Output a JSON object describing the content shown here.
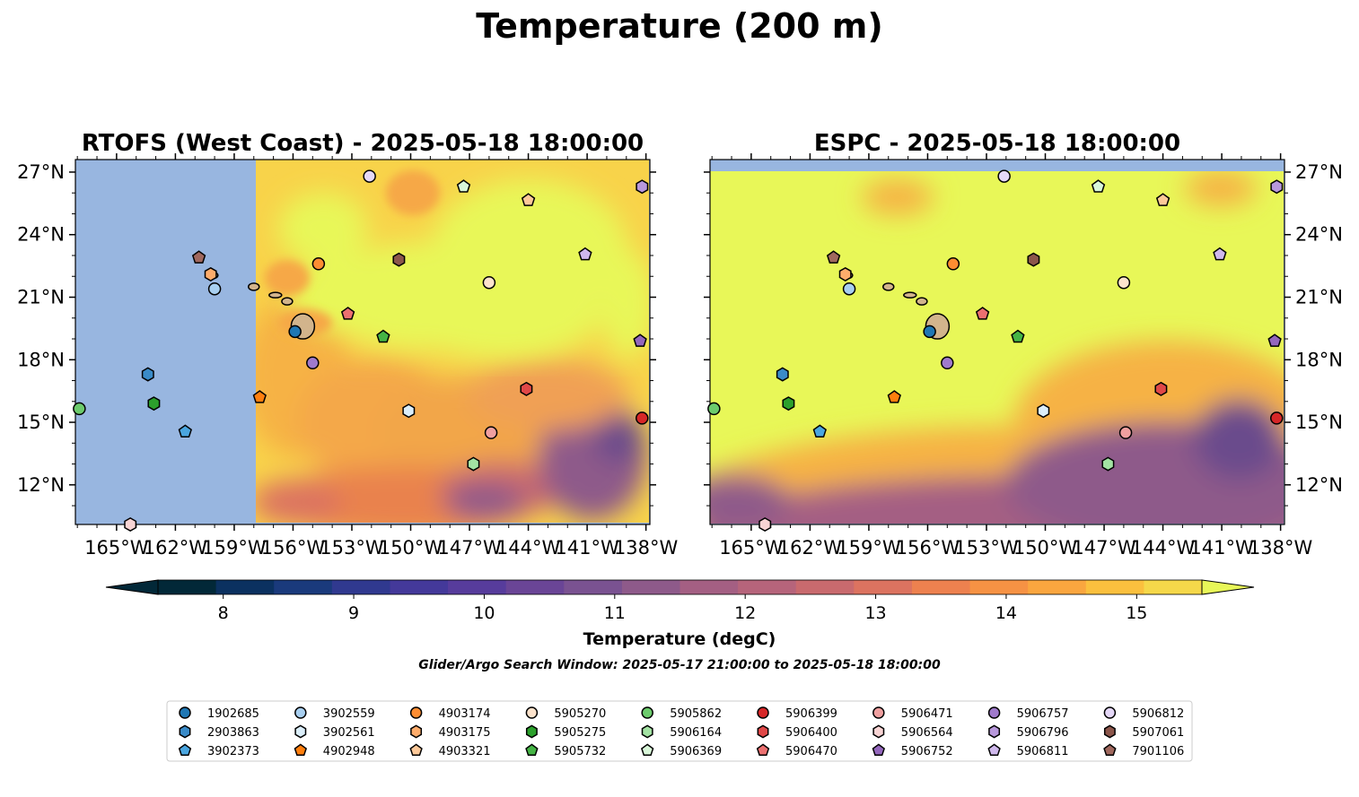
{
  "figure": {
    "title": "Temperature (200 m)",
    "colorbar_label": "Temperature (degC)",
    "search_window": "Glider/Argo Search Window: 2025-05-17 21:00:00 to 2025-05-18 18:00:00",
    "colors": {
      "ocean_nodata": "#98b6e0",
      "land": "#d2b48c",
      "warm": "#e8f758",
      "mid": "#f6b244",
      "cool": "#6a4c8c"
    }
  },
  "chart_data": [
    {
      "type": "heatmap",
      "title": "RTOFS (West Coast) - 2025-05-18 18:00:00",
      "xlim": [
        -167.1,
        -137.8
      ],
      "ylim": [
        10.1,
        27.6
      ],
      "xticks": [
        -165,
        -162,
        -159,
        -156,
        -153,
        -150,
        -147,
        -144,
        -141,
        -138
      ],
      "xtick_labels": [
        "165°W",
        "162°W",
        "159°W",
        "156°W",
        "153°W",
        "150°W",
        "147°W",
        "144°W",
        "141°W",
        "138°W"
      ],
      "yticks": [
        12,
        15,
        18,
        21,
        24,
        27
      ],
      "ytick_labels": [
        "12°N",
        "15°N",
        "18°N",
        "21°N",
        "24°N",
        "27°N"
      ],
      "ytick_side": "left",
      "model_domain_west_lon": -157.9,
      "model_domain_south_lat": 10.1
    },
    {
      "type": "heatmap",
      "title": "ESPC - 2025-05-18 18:00:00",
      "xlim": [
        -167.1,
        -137.8
      ],
      "ylim": [
        10.1,
        27.6
      ],
      "xticks": [
        -165,
        -162,
        -159,
        -156,
        -153,
        -150,
        -147,
        -144,
        -141,
        -138
      ],
      "xtick_labels": [
        "165°W",
        "162°W",
        "159°W",
        "156°W",
        "153°W",
        "150°W",
        "147°W",
        "144°W",
        "141°W",
        "138°W"
      ],
      "yticks": [
        12,
        15,
        18,
        21,
        24,
        27
      ],
      "ytick_labels": [
        "12°N",
        "15°N",
        "18°N",
        "21°N",
        "24°N",
        "27°N"
      ],
      "ytick_side": "right",
      "model_domain_north_lat": 27.1
    }
  ],
  "colorbar": {
    "vmin": 7.5,
    "vmax": 15.5,
    "ticks": [
      8,
      9,
      10,
      11,
      12,
      13,
      14,
      15
    ],
    "tick_labels": [
      "8",
      "9",
      "10",
      "11",
      "12",
      "13",
      "14",
      "15"
    ],
    "extend": "both",
    "colors": [
      "#022838",
      "#0b3160",
      "#1a3a7c",
      "#30398f",
      "#44399a",
      "#573c9c",
      "#6a4596",
      "#7a5291",
      "#8e5a8a",
      "#a45f83",
      "#b6647b",
      "#c96a6e",
      "#dc7360",
      "#ed814f",
      "#f69244",
      "#faa63f",
      "#fbc03e",
      "#f5d84a"
    ],
    "under_color": "#022838",
    "over_color": "#e8f758"
  },
  "legend": {
    "columns": 9,
    "entries": [
      {
        "label": "1902685",
        "color": "#1f77b4",
        "marker": "circle"
      },
      {
        "label": "2903863",
        "color": "#3a8bc8",
        "marker": "hexagon"
      },
      {
        "label": "3902373",
        "color": "#4aa6e0",
        "marker": "pentagon"
      },
      {
        "label": "3902559",
        "color": "#a8cff0",
        "marker": "circle"
      },
      {
        "label": "3902561",
        "color": "#dbeefa",
        "marker": "hexagon"
      },
      {
        "label": "4902948",
        "color": "#ff7f0e",
        "marker": "pentagon"
      },
      {
        "label": "4903174",
        "color": "#fd8d32",
        "marker": "circle"
      },
      {
        "label": "4903175",
        "color": "#fdac6b",
        "marker": "hexagon"
      },
      {
        "label": "4903321",
        "color": "#fdc999",
        "marker": "pentagon"
      },
      {
        "label": "5905270",
        "color": "#fde3cc",
        "marker": "circle"
      },
      {
        "label": "5905275",
        "color": "#2ca02c",
        "marker": "hexagon"
      },
      {
        "label": "5905732",
        "color": "#45b445",
        "marker": "pentagon"
      },
      {
        "label": "5905862",
        "color": "#6ccb6c",
        "marker": "circle"
      },
      {
        "label": "5906164",
        "color": "#a3e2a3",
        "marker": "hexagon"
      },
      {
        "label": "5906369",
        "color": "#d9f7d9",
        "marker": "pentagon"
      },
      {
        "label": "5906399",
        "color": "#d62728",
        "marker": "circle"
      },
      {
        "label": "5906400",
        "color": "#e04848",
        "marker": "hexagon"
      },
      {
        "label": "5906470",
        "color": "#ec7070",
        "marker": "pentagon"
      },
      {
        "label": "5906471",
        "color": "#f0a0a0",
        "marker": "circle"
      },
      {
        "label": "5906564",
        "color": "#f8d4d4",
        "marker": "hexagon"
      },
      {
        "label": "5906752",
        "color": "#9467bd",
        "marker": "pentagon"
      },
      {
        "label": "5906757",
        "color": "#a07acc",
        "marker": "circle"
      },
      {
        "label": "5906796",
        "color": "#b898dc",
        "marker": "hexagon"
      },
      {
        "label": "5906811",
        "color": "#cfb8ec",
        "marker": "pentagon"
      },
      {
        "label": "5906812",
        "color": "#e5d8f8",
        "marker": "circle"
      },
      {
        "label": "5907061",
        "color": "#8c564b",
        "marker": "hexagon"
      },
      {
        "label": "7901106",
        "color": "#a0685e",
        "marker": "pentagon"
      }
    ]
  },
  "floats": [
    {
      "label": "1902685",
      "lon": -155.9,
      "lat": 19.35
    },
    {
      "label": "2903863",
      "lon": -163.4,
      "lat": 17.3
    },
    {
      "label": "3902373",
      "lon": -161.5,
      "lat": 14.55
    },
    {
      "label": "3902559",
      "lon": -160.0,
      "lat": 21.4
    },
    {
      "label": "3902561",
      "lon": -150.1,
      "lat": 15.55
    },
    {
      "label": "4902948",
      "lon": -157.7,
      "lat": 16.2
    },
    {
      "label": "4903174",
      "lon": -154.7,
      "lat": 22.6
    },
    {
      "label": "4903175",
      "lon": -160.2,
      "lat": 22.1
    },
    {
      "label": "4903321",
      "lon": -144.0,
      "lat": 25.65
    },
    {
      "label": "5905270",
      "lon": -146.0,
      "lat": 21.7
    },
    {
      "label": "5905275",
      "lon": -163.1,
      "lat": 15.9
    },
    {
      "label": "5905732",
      "lon": -151.4,
      "lat": 19.1
    },
    {
      "label": "5905862",
      "lon": -166.9,
      "lat": 15.65
    },
    {
      "label": "5906164",
      "lon": -146.8,
      "lat": 13.0
    },
    {
      "label": "5906369",
      "lon": -147.3,
      "lat": 26.3
    },
    {
      "label": "5906399",
      "lon": -138.2,
      "lat": 15.2
    },
    {
      "label": "5906400",
      "lon": -144.1,
      "lat": 16.6
    },
    {
      "label": "5906470",
      "lon": -153.2,
      "lat": 20.2
    },
    {
      "label": "5906471",
      "lon": -145.9,
      "lat": 14.5
    },
    {
      "label": "5906564",
      "lon": -164.3,
      "lat": 10.1
    },
    {
      "label": "5906752",
      "lon": -138.3,
      "lat": 18.9
    },
    {
      "label": "5906757",
      "lon": -155.0,
      "lat": 17.85
    },
    {
      "label": "5906796",
      "lon": -138.2,
      "lat": 26.3
    },
    {
      "label": "5906811",
      "lon": -141.1,
      "lat": 23.05
    },
    {
      "label": "5906812",
      "lon": -152.1,
      "lat": 26.8
    },
    {
      "label": "5907061",
      "lon": -150.6,
      "lat": 22.8
    },
    {
      "label": "7901106",
      "lon": -160.8,
      "lat": 22.9
    }
  ]
}
